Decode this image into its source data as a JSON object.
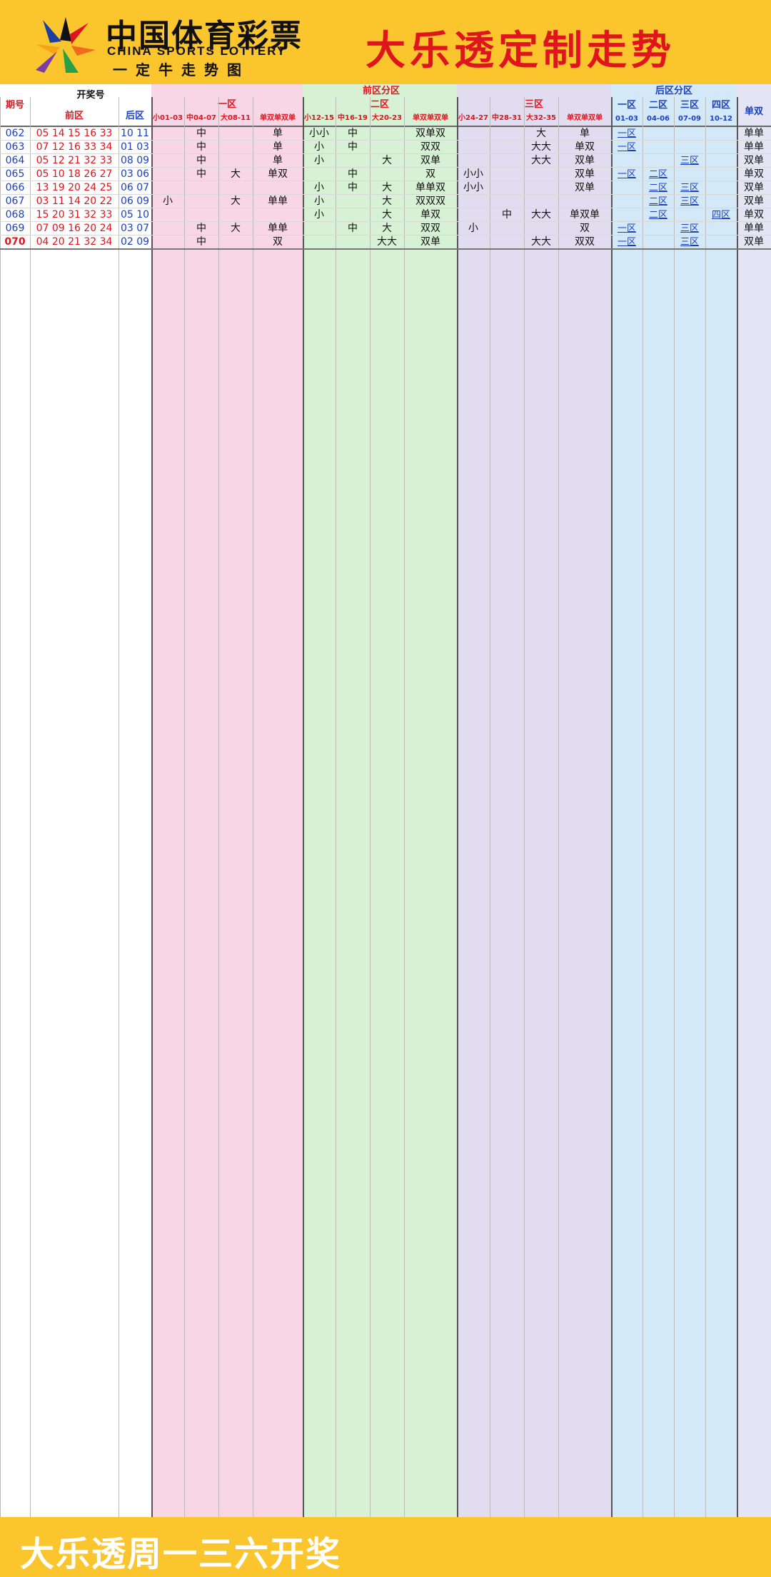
{
  "header": {
    "logo_cn": "中国体育彩票",
    "logo_en": "CHINA SPORTS LOTTERY",
    "logo_sub": "一定牛走势图",
    "title": "大乐透定制走势"
  },
  "footer": {
    "text": "大乐透周一三六开奖"
  },
  "table": {
    "h_issue": "期号",
    "h_draw": "开奖号",
    "h_front": "前区",
    "h_back": "后区",
    "h_front_zone": "前区分区",
    "h_back_zone": "后区分区",
    "h_z1": "一区",
    "h_z2": "二区",
    "h_z3": "三区",
    "h_oe": "单双",
    "sub_z1": [
      "小01-03",
      "中04-07",
      "大08-11",
      "单双单双单"
    ],
    "sub_z2": [
      "小12-15",
      "中16-19",
      "大20-23",
      "单双单双单"
    ],
    "sub_z3": [
      "小24-27",
      "中28-31",
      "大32-35",
      "单双单双单"
    ],
    "back_zone_headers": [
      "一区",
      "二区",
      "三区",
      "四区"
    ],
    "back_zone_ranges": [
      "01-03",
      "04-06",
      "07-09",
      "10-12"
    ],
    "rows": [
      [
        "062",
        "05 14 15 16 33",
        "10 11",
        "",
        "中",
        "",
        "单",
        "小小",
        "中",
        "",
        "双单双",
        "",
        "",
        "大",
        "单",
        "一区",
        "",
        "",
        "",
        "单单"
      ],
      [
        "063",
        "07 12 16 33 34",
        "01 03",
        "",
        "中",
        "",
        "单",
        "小",
        "中",
        "",
        "双双",
        "",
        "",
        "大大",
        "单双",
        "一区",
        "",
        "",
        "",
        "单单"
      ],
      [
        "064",
        "05 12 21 32 33",
        "08 09",
        "",
        "中",
        "",
        "单",
        "小",
        "",
        "大",
        "双单",
        "",
        "",
        "大大",
        "双单",
        "",
        "",
        "三区",
        "",
        "双单"
      ],
      [
        "065",
        "05 10 18 26 27",
        "03 06",
        "",
        "中",
        "大",
        "单双",
        "",
        "中",
        "",
        "双",
        "小小",
        "",
        "",
        "双单",
        "一区",
        "二区",
        "",
        "",
        "单双"
      ],
      [
        "066",
        "13 19 20 24 25",
        "06 07",
        "",
        "",
        "",
        "",
        "小",
        "中",
        "大",
        "单单双",
        "小小",
        "",
        "",
        "双单",
        "",
        "二区",
        "三区",
        "",
        "双单"
      ],
      [
        "067",
        "03 11 14 20 22",
        "06 09",
        "小",
        "",
        "大",
        "单单",
        "小",
        "",
        "大",
        "双双双",
        "",
        "",
        "",
        "",
        "",
        "二区",
        "三区",
        "",
        "双单"
      ],
      [
        "068",
        "15 20 31 32 33",
        "05 10",
        "",
        "",
        "",
        "",
        "小",
        "",
        "大",
        "单双",
        "",
        "中",
        "大大",
        "单双单",
        "",
        "二区",
        "",
        "四区",
        "单双"
      ],
      [
        "069",
        "07 09 16 20 24",
        "03 07",
        "",
        "中",
        "大",
        "单单",
        "",
        "中",
        "大",
        "双双",
        "小",
        "",
        "",
        "双",
        "一区",
        "",
        "三区",
        "",
        "单单"
      ],
      [
        "070",
        "04 20 21 32 34",
        "02 09",
        "",
        "中",
        "",
        "双",
        "",
        "",
        "大大",
        "双单",
        "",
        "",
        "大大",
        "双双",
        "一区",
        "",
        "三区",
        "",
        "双单"
      ]
    ]
  }
}
